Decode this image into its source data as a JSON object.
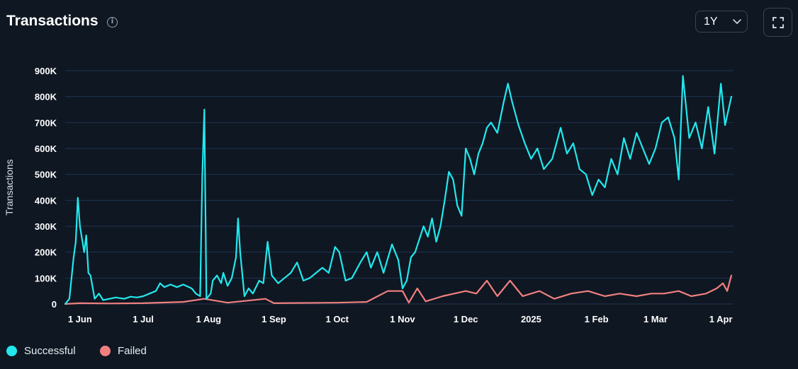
{
  "header": {
    "title": "Transactions",
    "info_icon": "info-circle-icon",
    "range_value": "1Y",
    "range_chevron_icon": "chevron-down-icon",
    "fullscreen_icon": "expand-corners-icon"
  },
  "legend": {
    "items": [
      {
        "label": "Successful",
        "color": "#22e8ee"
      },
      {
        "label": "Failed",
        "color": "#f08080"
      }
    ]
  },
  "chart_data": {
    "type": "line",
    "ylabel": "Transactions",
    "xlabel": "",
    "ylim": [
      0,
      900000
    ],
    "yticks": [
      0,
      100000,
      200000,
      300000,
      400000,
      500000,
      600000,
      700000,
      800000,
      900000
    ],
    "yticklabels": [
      "0",
      "100K",
      "200K",
      "300K",
      "400K",
      "500K",
      "600K",
      "700K",
      "800K",
      "900K"
    ],
    "xlim": [
      "2024-05-25",
      "2025-04-07"
    ],
    "xticks": [
      "2024-06-01",
      "2024-07-01",
      "2024-08-01",
      "2024-09-01",
      "2024-10-01",
      "2024-11-01",
      "2024-12-01",
      "2025-01-01",
      "2025-02-01",
      "2025-03-01",
      "2025-04-01"
    ],
    "xticklabels": [
      "1 Jun",
      "1 Jul",
      "1 Aug",
      "1 Sep",
      "1 Oct",
      "1 Nov",
      "1 Dec",
      "2025",
      "1 Feb",
      "1 Mar",
      "1 Apr"
    ],
    "grid": true,
    "legend_position": "bottom-left",
    "series": [
      {
        "name": "Successful",
        "color": "#22e8ee",
        "points": [
          [
            "2024-05-25",
            0
          ],
          [
            "2024-05-27",
            20000
          ],
          [
            "2024-05-29",
            180000
          ],
          [
            "2024-05-30",
            240000
          ],
          [
            "2024-05-31",
            410000
          ],
          [
            "2024-06-01",
            300000
          ],
          [
            "2024-06-03",
            200000
          ],
          [
            "2024-06-04",
            265000
          ],
          [
            "2024-06-05",
            120000
          ],
          [
            "2024-06-06",
            110000
          ],
          [
            "2024-06-08",
            20000
          ],
          [
            "2024-06-10",
            40000
          ],
          [
            "2024-06-12",
            15000
          ],
          [
            "2024-06-15",
            20000
          ],
          [
            "2024-06-18",
            25000
          ],
          [
            "2024-06-22",
            20000
          ],
          [
            "2024-06-25",
            28000
          ],
          [
            "2024-06-28",
            25000
          ],
          [
            "2024-07-01",
            30000
          ],
          [
            "2024-07-04",
            40000
          ],
          [
            "2024-07-07",
            50000
          ],
          [
            "2024-07-09",
            80000
          ],
          [
            "2024-07-11",
            65000
          ],
          [
            "2024-07-14",
            75000
          ],
          [
            "2024-07-17",
            65000
          ],
          [
            "2024-07-20",
            75000
          ],
          [
            "2024-07-24",
            60000
          ],
          [
            "2024-07-26",
            40000
          ],
          [
            "2024-07-28",
            30000
          ],
          [
            "2024-07-29",
            490000
          ],
          [
            "2024-07-30",
            750000
          ],
          [
            "2024-07-31",
            20000
          ],
          [
            "2024-08-02",
            40000
          ],
          [
            "2024-08-03",
            90000
          ],
          [
            "2024-08-05",
            110000
          ],
          [
            "2024-08-07",
            80000
          ],
          [
            "2024-08-08",
            120000
          ],
          [
            "2024-08-10",
            70000
          ],
          [
            "2024-08-12",
            100000
          ],
          [
            "2024-08-14",
            180000
          ],
          [
            "2024-08-15",
            330000
          ],
          [
            "2024-08-16",
            200000
          ],
          [
            "2024-08-18",
            30000
          ],
          [
            "2024-08-20",
            60000
          ],
          [
            "2024-08-22",
            40000
          ],
          [
            "2024-08-25",
            90000
          ],
          [
            "2024-08-27",
            80000
          ],
          [
            "2024-08-29",
            240000
          ],
          [
            "2024-08-31",
            110000
          ],
          [
            "2024-09-03",
            80000
          ],
          [
            "2024-09-06",
            100000
          ],
          [
            "2024-09-09",
            120000
          ],
          [
            "2024-09-12",
            160000
          ],
          [
            "2024-09-15",
            90000
          ],
          [
            "2024-09-18",
            100000
          ],
          [
            "2024-09-21",
            120000
          ],
          [
            "2024-09-24",
            140000
          ],
          [
            "2024-09-27",
            120000
          ],
          [
            "2024-09-30",
            220000
          ],
          [
            "2024-10-02",
            200000
          ],
          [
            "2024-10-05",
            90000
          ],
          [
            "2024-10-08",
            100000
          ],
          [
            "2024-10-12",
            160000
          ],
          [
            "2024-10-15",
            200000
          ],
          [
            "2024-10-17",
            140000
          ],
          [
            "2024-10-20",
            200000
          ],
          [
            "2024-10-23",
            120000
          ],
          [
            "2024-10-27",
            230000
          ],
          [
            "2024-10-30",
            170000
          ],
          [
            "2024-11-01",
            60000
          ],
          [
            "2024-11-03",
            90000
          ],
          [
            "2024-11-05",
            180000
          ],
          [
            "2024-11-07",
            200000
          ],
          [
            "2024-11-09",
            250000
          ],
          [
            "2024-11-11",
            300000
          ],
          [
            "2024-11-13",
            260000
          ],
          [
            "2024-11-15",
            330000
          ],
          [
            "2024-11-17",
            240000
          ],
          [
            "2024-11-19",
            300000
          ],
          [
            "2024-11-21",
            400000
          ],
          [
            "2024-11-23",
            510000
          ],
          [
            "2024-11-25",
            480000
          ],
          [
            "2024-11-27",
            380000
          ],
          [
            "2024-11-29",
            340000
          ],
          [
            "2024-12-01",
            600000
          ],
          [
            "2024-12-03",
            560000
          ],
          [
            "2024-12-05",
            500000
          ],
          [
            "2024-12-07",
            580000
          ],
          [
            "2024-12-09",
            620000
          ],
          [
            "2024-12-11",
            680000
          ],
          [
            "2024-12-13",
            700000
          ],
          [
            "2024-12-16",
            660000
          ],
          [
            "2024-12-19",
            780000
          ],
          [
            "2024-12-21",
            850000
          ],
          [
            "2024-12-23",
            780000
          ],
          [
            "2024-12-26",
            690000
          ],
          [
            "2024-12-29",
            620000
          ],
          [
            "2025-01-01",
            560000
          ],
          [
            "2025-01-04",
            600000
          ],
          [
            "2025-01-07",
            520000
          ],
          [
            "2025-01-11",
            560000
          ],
          [
            "2025-01-15",
            680000
          ],
          [
            "2025-01-18",
            580000
          ],
          [
            "2025-01-21",
            620000
          ],
          [
            "2025-01-24",
            520000
          ],
          [
            "2025-01-27",
            500000
          ],
          [
            "2025-01-30",
            420000
          ],
          [
            "2025-02-02",
            480000
          ],
          [
            "2025-02-05",
            450000
          ],
          [
            "2025-02-08",
            560000
          ],
          [
            "2025-02-11",
            500000
          ],
          [
            "2025-02-14",
            640000
          ],
          [
            "2025-02-17",
            560000
          ],
          [
            "2025-02-20",
            660000
          ],
          [
            "2025-02-23",
            600000
          ],
          [
            "2025-02-26",
            540000
          ],
          [
            "2025-03-01",
            600000
          ],
          [
            "2025-03-04",
            700000
          ],
          [
            "2025-03-07",
            720000
          ],
          [
            "2025-03-10",
            640000
          ],
          [
            "2025-03-12",
            480000
          ],
          [
            "2025-03-14",
            880000
          ],
          [
            "2025-03-17",
            640000
          ],
          [
            "2025-03-20",
            700000
          ],
          [
            "2025-03-23",
            600000
          ],
          [
            "2025-03-26",
            760000
          ],
          [
            "2025-03-29",
            580000
          ],
          [
            "2025-04-01",
            850000
          ],
          [
            "2025-04-03",
            690000
          ],
          [
            "2025-04-06",
            800000
          ]
        ]
      },
      {
        "name": "Failed",
        "color": "#f08080",
        "points": [
          [
            "2024-05-25",
            0
          ],
          [
            "2024-06-01",
            3000
          ],
          [
            "2024-06-15",
            2000
          ],
          [
            "2024-07-01",
            3000
          ],
          [
            "2024-07-20",
            8000
          ],
          [
            "2024-07-30",
            20000
          ],
          [
            "2024-08-10",
            5000
          ],
          [
            "2024-08-28",
            20000
          ],
          [
            "2024-09-01",
            3000
          ],
          [
            "2024-10-01",
            5000
          ],
          [
            "2024-10-15",
            8000
          ],
          [
            "2024-10-25",
            50000
          ],
          [
            "2024-11-01",
            50000
          ],
          [
            "2024-11-04",
            5000
          ],
          [
            "2024-11-08",
            60000
          ],
          [
            "2024-11-12",
            10000
          ],
          [
            "2024-11-20",
            30000
          ],
          [
            "2024-12-01",
            50000
          ],
          [
            "2024-12-06",
            40000
          ],
          [
            "2024-12-11",
            90000
          ],
          [
            "2024-12-16",
            30000
          ],
          [
            "2024-12-22",
            90000
          ],
          [
            "2024-12-28",
            30000
          ],
          [
            "2025-01-05",
            50000
          ],
          [
            "2025-01-12",
            20000
          ],
          [
            "2025-01-20",
            40000
          ],
          [
            "2025-01-28",
            50000
          ],
          [
            "2025-02-05",
            30000
          ],
          [
            "2025-02-12",
            40000
          ],
          [
            "2025-02-20",
            30000
          ],
          [
            "2025-02-27",
            40000
          ],
          [
            "2025-03-05",
            40000
          ],
          [
            "2025-03-12",
            50000
          ],
          [
            "2025-03-18",
            30000
          ],
          [
            "2025-03-25",
            40000
          ],
          [
            "2025-03-30",
            60000
          ],
          [
            "2025-04-02",
            80000
          ],
          [
            "2025-04-04",
            50000
          ],
          [
            "2025-04-06",
            110000
          ]
        ]
      }
    ]
  }
}
